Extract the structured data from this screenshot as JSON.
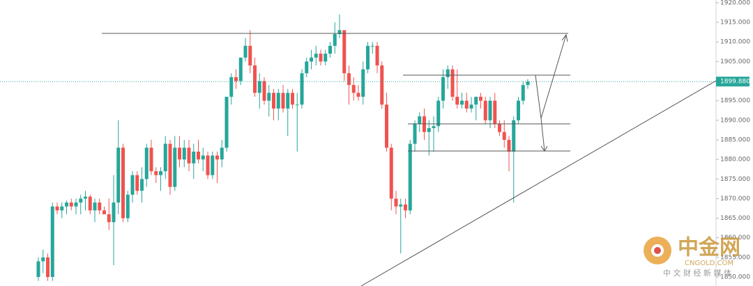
{
  "chart_data": {
    "type": "candlestick",
    "ylim": [
      1847.7,
      1920.7
    ],
    "yticks": [
      {
        "value": 1920,
        "label": "1920.000"
      },
      {
        "value": 1915,
        "label": "1915.000"
      },
      {
        "value": 1910,
        "label": "1910.000"
      },
      {
        "value": 1905,
        "label": "1905.000"
      },
      {
        "value": 1900,
        "label": "1900.000"
      },
      {
        "value": 1895,
        "label": "1895.000"
      },
      {
        "value": 1890,
        "label": "1890.000"
      },
      {
        "value": 1885,
        "label": "1885.000"
      },
      {
        "value": 1880,
        "label": "1880.000"
      },
      {
        "value": 1875,
        "label": "1875.000"
      },
      {
        "value": 1870,
        "label": "1870.000"
      },
      {
        "value": 1865,
        "label": "1865.000"
      },
      {
        "value": 1860,
        "label": "1860.000"
      },
      {
        "value": 1855,
        "label": "1855.000"
      },
      {
        "value": 1850,
        "label": "1850.000"
      }
    ],
    "up_color": "#26a69a",
    "down_color": "#ef5350",
    "last_price": 1899.88,
    "last_price_label": "1899.880",
    "open": [
      1850,
      1854,
      1855,
      1850,
      1868,
      1867,
      1868,
      1869,
      1868,
      1869,
      1870,
      1870.5,
      1867,
      1869,
      1867,
      1866,
      1864,
      1869,
      1883,
      1865,
      1871,
      1876,
      1872,
      1875,
      1883,
      1877,
      1876,
      1877,
      1884,
      1873,
      1883,
      1880,
      1883,
      1879,
      1882,
      1880,
      1881,
      1876,
      1881,
      1880,
      1883,
      1896,
      1901,
      1900,
      1906,
      1909,
      1904,
      1897,
      1900,
      1895,
      1897,
      1893,
      1897,
      1893,
      1897,
      1894,
      1894,
      1902,
      1905,
      1906,
      1907,
      1905,
      1907,
      1909,
      1912,
      1913,
      1902,
      1899,
      1897,
      1896,
      1903,
      1909,
      1909,
      1904,
      1894,
      1883,
      1870,
      1868,
      1868.5,
      1867,
      1884,
      1889,
      1891,
      1887,
      1888,
      1888.5,
      1895,
      1901,
      1903,
      1896,
      1894,
      1895,
      1893,
      1894,
      1896,
      1895,
      1890,
      1895,
      1889,
      1887,
      1885,
      1882,
      1890,
      1895,
      1899
    ],
    "high": [
      1855,
      1857,
      1856,
      1869,
      1869,
      1869,
      1869.5,
      1870,
      1870,
      1871,
      1872,
      1871,
      1870,
      1870,
      1868,
      1870,
      1876,
      1890,
      1884,
      1872,
      1877,
      1877,
      1878,
      1884,
      1885,
      1878,
      1878,
      1886,
      1885,
      1886,
      1886,
      1885,
      1885,
      1884,
      1885,
      1883,
      1882,
      1882,
      1882,
      1885,
      1896,
      1902,
      1903,
      1906,
      1911,
      1913,
      1906,
      1902,
      1901,
      1899,
      1898,
      1898,
      1899,
      1898,
      1898,
      1897,
      1903,
      1906,
      1908,
      1909,
      1908,
      1908,
      1910,
      1915,
      1917,
      1913,
      1904,
      1901,
      1899,
      1905,
      1910,
      1910,
      1910,
      1905,
      1897,
      1884,
      1872,
      1870,
      1870,
      1885,
      1890,
      1892,
      1893,
      1890,
      1891,
      1896,
      1903,
      1904,
      1904,
      1903,
      1897,
      1897,
      1896,
      1896,
      1897,
      1896,
      1896,
      1897,
      1890,
      1890,
      1886,
      1891,
      1896,
      1900,
      1900.5
    ],
    "low": [
      1849,
      1851,
      1849,
      1849,
      1866,
      1865,
      1866,
      1867,
      1866,
      1866,
      1867,
      1866,
      1864,
      1866,
      1866,
      1862,
      1853,
      1866,
      1864,
      1864,
      1869,
      1871,
      1869,
      1873,
      1876,
      1874,
      1872,
      1875,
      1871,
      1872,
      1878,
      1878,
      1877,
      1875,
      1879,
      1877,
      1875,
      1875,
      1874,
      1878,
      1882,
      1894,
      1898,
      1899,
      1905,
      1902,
      1896,
      1893,
      1894,
      1891,
      1890,
      1890,
      1892,
      1886,
      1893,
      1882,
      1893,
      1901,
      1903,
      1904,
      1904,
      1904,
      1906,
      1907,
      1911,
      1900,
      1894,
      1895,
      1895,
      1894,
      1902,
      1907,
      1902,
      1893,
      1882,
      1867,
      1866,
      1856,
      1865,
      1866,
      1882,
      1887,
      1885,
      1881,
      1882,
      1887,
      1893,
      1898,
      1895,
      1893,
      1893,
      1892,
      1892,
      1890,
      1893,
      1889,
      1888,
      1888,
      1886,
      1883,
      1877,
      1869,
      1889,
      1894,
      1898
    ],
    "close": [
      1854,
      1855,
      1850,
      1868,
      1867,
      1868,
      1869,
      1868,
      1869,
      1870,
      1870.5,
      1867,
      1869,
      1867,
      1866,
      1864,
      1869,
      1883,
      1865,
      1871,
      1876,
      1872,
      1875,
      1883,
      1877,
      1876,
      1877,
      1884,
      1873,
      1883,
      1880,
      1883,
      1879,
      1882,
      1880,
      1881,
      1876,
      1881,
      1880,
      1883,
      1896,
      1901,
      1900,
      1906,
      1909,
      1904,
      1897,
      1900,
      1895,
      1897,
      1893,
      1897,
      1893,
      1897,
      1894,
      1894,
      1902,
      1905,
      1906,
      1907,
      1905,
      1907,
      1909,
      1912,
      1913,
      1902,
      1899,
      1897,
      1896,
      1903,
      1909,
      1909,
      1904,
      1894,
      1883,
      1870,
      1868,
      1868.5,
      1867,
      1884,
      1889,
      1891,
      1887,
      1888,
      1888.5,
      1895,
      1901,
      1903,
      1896,
      1894,
      1895,
      1893,
      1894,
      1896,
      1895,
      1890,
      1895,
      1889,
      1887,
      1885,
      1882,
      1890,
      1895,
      1899,
      1899.88
    ]
  },
  "watermark": {
    "brand": "中金网",
    "site": "CNGOLD.COM",
    "tagline": "中 文 财 经 新 媒 体"
  }
}
